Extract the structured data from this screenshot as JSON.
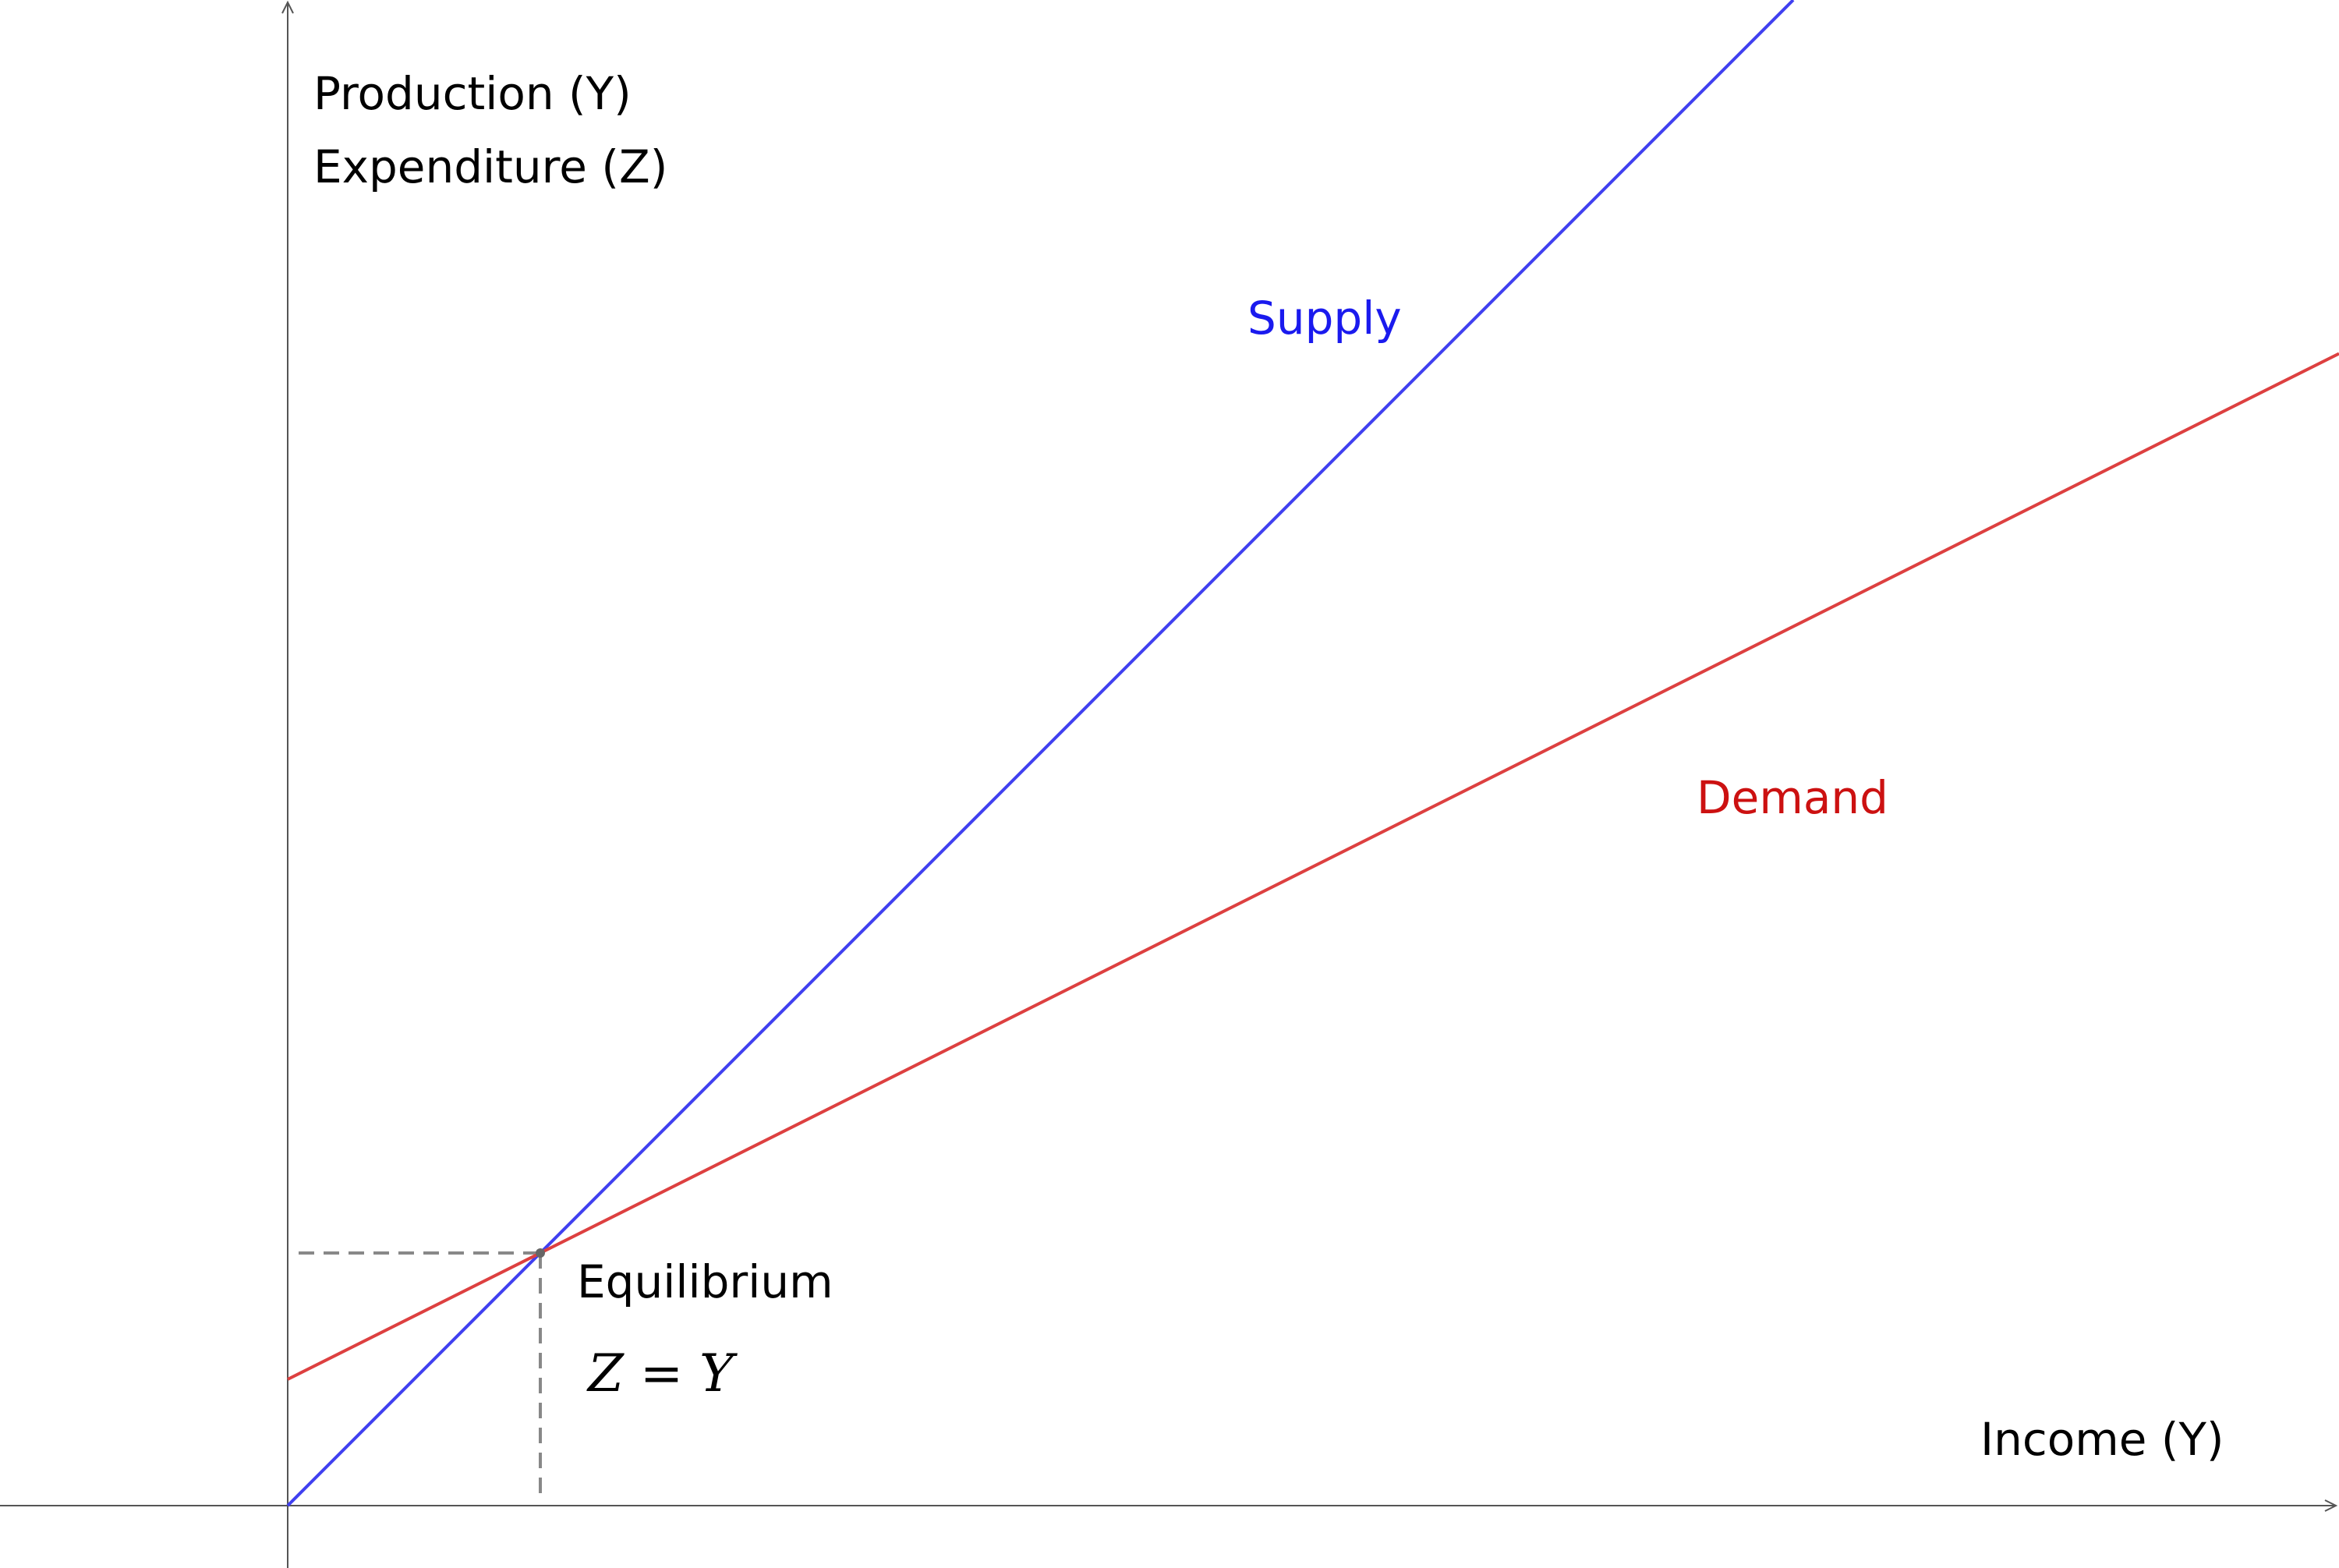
{
  "chart_data": {
    "type": "line",
    "title": "",
    "ylabel_lines": [
      "Production (Y)",
      "Expenditure (Z)"
    ],
    "xlabel": "Income (Y)",
    "xlim": [
      0,
      1
    ],
    "ylim": [
      0,
      1
    ],
    "grid": false,
    "legend": "none",
    "series": [
      {
        "name": "Supply",
        "color": "#4040f0",
        "label_color": "#1a1aee",
        "points": [
          [
            0,
            0
          ],
          [
            1,
            1
          ]
        ]
      },
      {
        "name": "Demand",
        "color": "#dd4040",
        "label_color": "#cc1111",
        "intercept": 0.125,
        "slope": 0.5
      }
    ],
    "equilibrium": {
      "x": 0.25,
      "y": 0.25,
      "label": "Equilibrium",
      "equation": "Z = Y"
    }
  },
  "colors": {
    "axis": "#555555",
    "guide": "#888888",
    "point": "#666666"
  }
}
